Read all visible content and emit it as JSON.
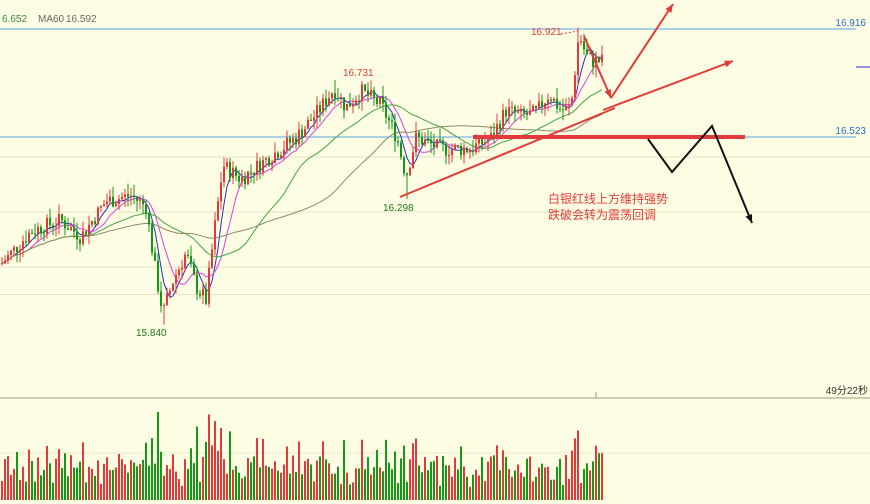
{
  "header": {
    "ma_partial": "6.652",
    "ma60_label": "MA60",
    "ma60_value": "16.592"
  },
  "price_tags": {
    "upper": "16.916",
    "lower": "16.523"
  },
  "countdown": "49分22秒",
  "annotation": {
    "line1": "白银红线上方维持强势",
    "line2": "跌破会转为震荡回调"
  },
  "chart_data": {
    "type": "candlestick",
    "price_labels": [
      {
        "text": "16.921",
        "value": 16.921,
        "kind": "high"
      },
      {
        "text": "16.731",
        "value": 16.731,
        "kind": "high"
      },
      {
        "text": "16.298",
        "value": 16.298,
        "kind": "low"
      },
      {
        "text": "15.840",
        "value": 15.84,
        "kind": "low"
      }
    ],
    "horizontal_levels": [
      16.916,
      16.523
    ],
    "colors": {
      "up": "#e23a3a",
      "down": "#149914",
      "level_line": "#5aa2e6",
      "ma_blue": "#2b2bd6",
      "ma_magenta": "#e040e0",
      "ma_green": "#3fa63f",
      "ma_gray": "#8a8a6a",
      "forecast_red": "#e23a3a",
      "forecast_black": "#111111"
    }
  }
}
